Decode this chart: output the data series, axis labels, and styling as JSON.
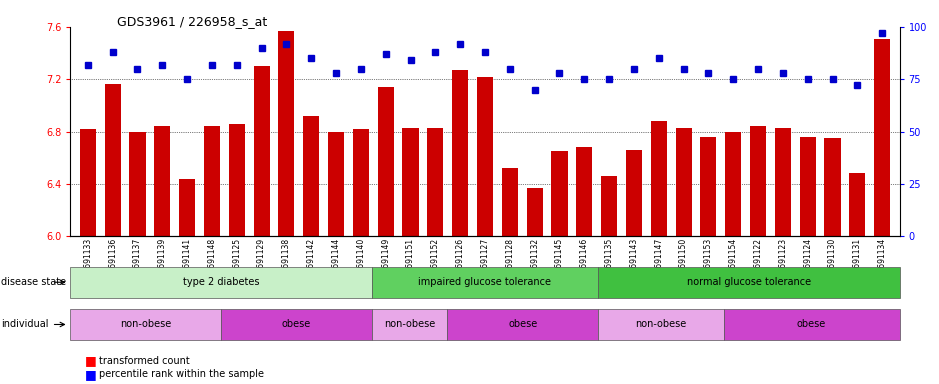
{
  "title": "GDS3961 / 226958_s_at",
  "samples": [
    "GSM691133",
    "GSM691136",
    "GSM691137",
    "GSM691139",
    "GSM691141",
    "GSM691148",
    "GSM691125",
    "GSM691129",
    "GSM691138",
    "GSM691142",
    "GSM691144",
    "GSM691140",
    "GSM691149",
    "GSM691151",
    "GSM691152",
    "GSM691126",
    "GSM691127",
    "GSM691128",
    "GSM691132",
    "GSM691145",
    "GSM691146",
    "GSM691135",
    "GSM691143",
    "GSM691147",
    "GSM691150",
    "GSM691153",
    "GSM691154",
    "GSM691122",
    "GSM691123",
    "GSM691124",
    "GSM691130",
    "GSM691131",
    "GSM691134"
  ],
  "bar_values": [
    6.82,
    7.16,
    6.8,
    6.84,
    6.44,
    6.84,
    6.86,
    7.3,
    7.57,
    6.92,
    6.8,
    6.82,
    7.14,
    6.83,
    6.83,
    7.27,
    7.22,
    6.52,
    6.37,
    6.65,
    6.68,
    6.46,
    6.66,
    6.88,
    6.83,
    6.76,
    6.8,
    6.84,
    6.83,
    6.76,
    6.75,
    6.48,
    7.51
  ],
  "percentile_values": [
    82,
    88,
    80,
    82,
    75,
    82,
    82,
    90,
    92,
    85,
    78,
    80,
    87,
    84,
    88,
    92,
    88,
    80,
    70,
    78,
    75,
    75,
    80,
    85,
    80,
    78,
    75,
    80,
    78,
    75,
    75,
    72,
    97
  ],
  "bar_color": "#cc0000",
  "dot_color": "#0000cc",
  "ylim_left": [
    6.0,
    7.6
  ],
  "ylim_right": [
    0,
    100
  ],
  "yticks_left": [
    6.0,
    6.4,
    6.8,
    7.2,
    7.6
  ],
  "yticks_right": [
    0,
    25,
    50,
    75,
    100
  ],
  "disease_state_groups": [
    {
      "label": "type 2 diabetes",
      "start": 0,
      "end": 12,
      "color": "#c8f0c8"
    },
    {
      "label": "impaired glucose tolerance",
      "start": 12,
      "end": 21,
      "color": "#60d060"
    },
    {
      "label": "normal glucose tolerance",
      "start": 21,
      "end": 33,
      "color": "#40c040"
    }
  ],
  "individual_groups": [
    {
      "label": "non-obese",
      "start": 0,
      "end": 6,
      "color": "#e8a8e8"
    },
    {
      "label": "obese",
      "start": 6,
      "end": 12,
      "color": "#cc44cc"
    },
    {
      "label": "non-obese",
      "start": 12,
      "end": 15,
      "color": "#e8a8e8"
    },
    {
      "label": "obese",
      "start": 15,
      "end": 21,
      "color": "#cc44cc"
    },
    {
      "label": "non-obese",
      "start": 21,
      "end": 26,
      "color": "#e8a8e8"
    },
    {
      "label": "obese",
      "start": 26,
      "end": 33,
      "color": "#cc44cc"
    }
  ],
  "disease_state_label": "disease state",
  "individual_label": "individual",
  "legend_bar_label": "transformed count",
  "legend_dot_label": "percentile rank within the sample",
  "background_color": "#ffffff"
}
